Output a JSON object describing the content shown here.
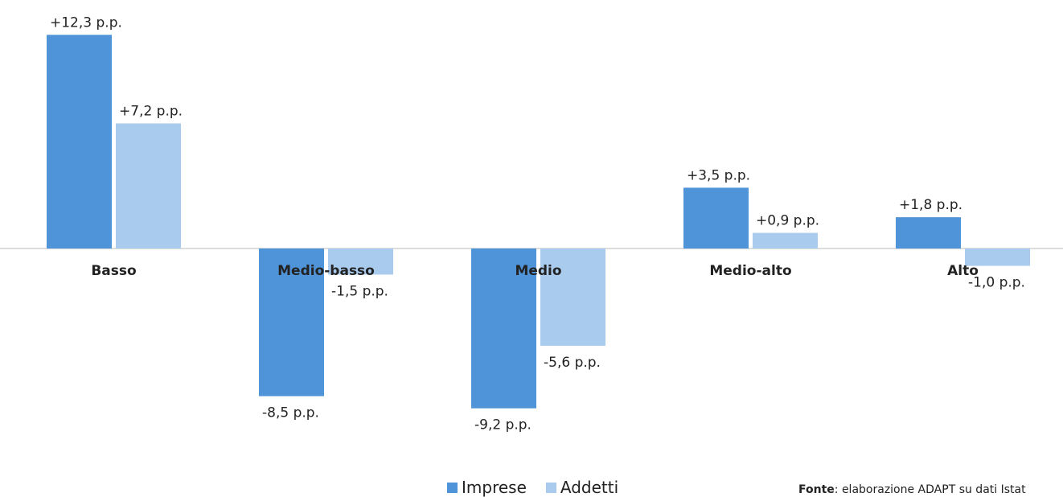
{
  "chart_data": {
    "type": "bar",
    "categories": [
      "Basso",
      "Medio-basso",
      "Medio",
      "Medio-alto",
      "Alto"
    ],
    "series": [
      {
        "name": "Imprese",
        "values": [
          12.3,
          -8.5,
          -9.2,
          3.5,
          1.8
        ],
        "labels": [
          "+12,3 p.p.",
          "-8,5 p.p.",
          "-9,2 p.p.",
          "+3,5 p.p.",
          "+1,8 p.p."
        ]
      },
      {
        "name": "Addetti",
        "values": [
          7.2,
          -1.5,
          -5.6,
          0.9,
          -1.0
        ],
        "labels": [
          "+7,2 p.p.",
          "-1,5 p.p.",
          "-5,6 p.p.",
          "+0,9 p.p.",
          "-1,0 p.p."
        ]
      }
    ],
    "ylim": [
      -9.2,
      12.3
    ],
    "grid": false,
    "legend_position": "bottom"
  },
  "colors": {
    "imprese": "#4f93d8",
    "addetti": "#a9cbee",
    "axis": "#d0d0d0",
    "text": "#222222"
  },
  "source": {
    "label": "Fonte",
    "text": ": elaborazione ADAPT su dati Istat"
  }
}
